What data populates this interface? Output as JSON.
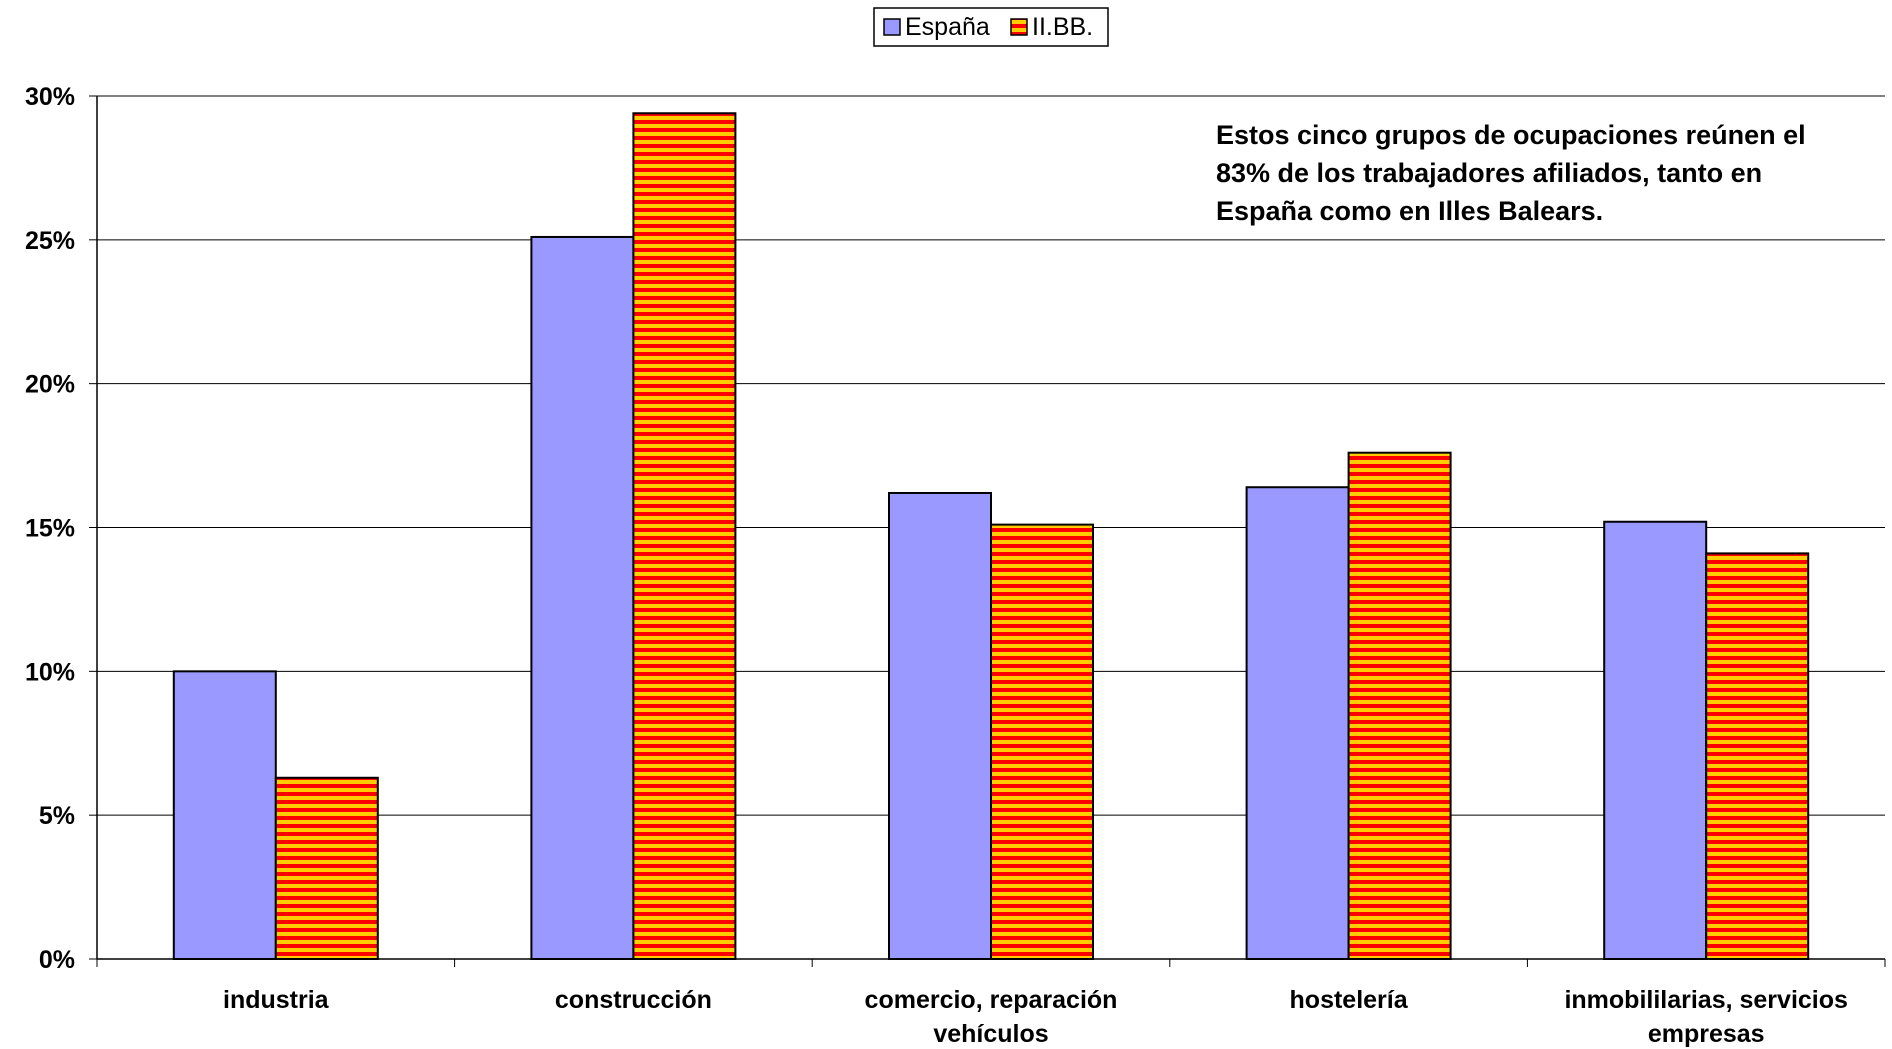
{
  "chart_data": {
    "type": "bar",
    "categories": [
      [
        "industria"
      ],
      [
        "construcción"
      ],
      [
        "comercio, reparación",
        "vehículos"
      ],
      [
        "hostelería"
      ],
      [
        "inmobililarias, servicios",
        "empresas"
      ]
    ],
    "series": [
      {
        "name": "España",
        "values": [
          10.0,
          25.1,
          16.2,
          16.4,
          15.2
        ],
        "color": "#9999ff"
      },
      {
        "name": "II.BB.",
        "values": [
          6.3,
          29.4,
          15.1,
          17.6,
          14.1
        ],
        "color": "#ff0000",
        "stripe_color": "#ffcc00"
      }
    ],
    "ylim": [
      0,
      30
    ],
    "ytick_values": [
      0,
      5,
      10,
      15,
      20,
      25,
      30
    ],
    "ytick_labels": [
      "0%",
      "5%",
      "10%",
      "15%",
      "20%",
      "25%",
      "30%"
    ],
    "grid": true,
    "legend_position": "top-center",
    "annotation": [
      "Estos cinco grupos de ocupaciones reúnen el",
      "83% de los trabajadores afiliados, tanto en",
      "España como en Illes Balears."
    ]
  }
}
